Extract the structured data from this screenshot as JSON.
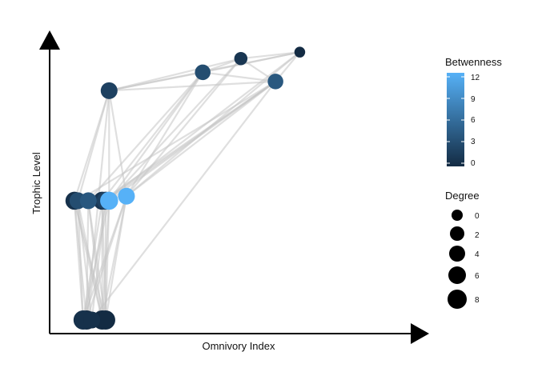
{
  "axes": {
    "x_label": "Omnivory Index",
    "y_label": "Trophic Level"
  },
  "legend_betweenness": {
    "title": "Betwenness",
    "ticks": [
      "12",
      "9",
      "6",
      "3",
      "0"
    ],
    "color_low": "#132b43",
    "color_high": "#56b1f7"
  },
  "legend_degree": {
    "title": "Degree",
    "ticks": [
      "0",
      "2",
      "4",
      "6",
      "8"
    ]
  },
  "colors": {
    "edge": "#c4c4c4",
    "axis": "#000000"
  },
  "chart_data": {
    "type": "network",
    "nodes": [
      {
        "id": "t1",
        "omnivory": 0.51,
        "trophic": 3.85,
        "betweenness": 1,
        "degree": 3
      },
      {
        "id": "t2",
        "omnivory": 0.68,
        "trophic": 3.92,
        "betweenness": 0,
        "degree": 1
      },
      {
        "id": "t3",
        "omnivory": 0.4,
        "trophic": 3.7,
        "betweenness": 3,
        "degree": 5
      },
      {
        "id": "t4",
        "omnivory": 0.61,
        "trophic": 3.6,
        "betweenness": 4,
        "degree": 5
      },
      {
        "id": "t5",
        "omnivory": 0.13,
        "trophic": 3.5,
        "betweenness": 2,
        "degree": 6
      },
      {
        "id": "m1",
        "omnivory": 0.03,
        "trophic": 2.3,
        "betweenness": 0.5,
        "degree": 7
      },
      {
        "id": "m2",
        "omnivory": 0.04,
        "trophic": 2.3,
        "betweenness": 3,
        "degree": 6
      },
      {
        "id": "m3",
        "omnivory": 0.07,
        "trophic": 2.3,
        "betweenness": 4,
        "degree": 6
      },
      {
        "id": "m4",
        "omnivory": 0.11,
        "trophic": 2.3,
        "betweenness": 1,
        "degree": 7
      },
      {
        "id": "m5",
        "omnivory": 0.12,
        "trophic": 2.3,
        "betweenness": 2,
        "degree": 7
      },
      {
        "id": "m6",
        "omnivory": 0.13,
        "trophic": 2.3,
        "betweenness": 12,
        "degree": 7
      },
      {
        "id": "m7",
        "omnivory": 0.18,
        "trophic": 2.35,
        "betweenness": 12,
        "degree": 6
      },
      {
        "id": "b1",
        "omnivory": 0.055,
        "trophic": 1.0,
        "betweenness": 0.5,
        "degree": 8
      },
      {
        "id": "b2",
        "omnivory": 0.065,
        "trophic": 1.0,
        "betweenness": 0,
        "degree": 8
      },
      {
        "id": "b3",
        "omnivory": 0.08,
        "trophic": 1.0,
        "betweenness": 0.5,
        "degree": 6
      },
      {
        "id": "b4",
        "omnivory": 0.11,
        "trophic": 1.0,
        "betweenness": 0,
        "degree": 8
      },
      {
        "id": "b5",
        "omnivory": 0.12,
        "trophic": 1.0,
        "betweenness": 0,
        "degree": 8
      }
    ],
    "edges": [
      [
        "t1",
        "t2"
      ],
      [
        "t1",
        "t3"
      ],
      [
        "t1",
        "t4"
      ],
      [
        "t1",
        "t5"
      ],
      [
        "t2",
        "t3"
      ],
      [
        "t2",
        "t4"
      ],
      [
        "t2",
        "t5"
      ],
      [
        "t3",
        "t5"
      ],
      [
        "t4",
        "t5"
      ],
      [
        "t3",
        "t4"
      ],
      [
        "t3",
        "m3"
      ],
      [
        "t3",
        "m6"
      ],
      [
        "t3",
        "m7"
      ],
      [
        "t3",
        "m4"
      ],
      [
        "t4",
        "m7"
      ],
      [
        "t4",
        "m5"
      ],
      [
        "t4",
        "m6"
      ],
      [
        "t4",
        "m2"
      ],
      [
        "t4",
        "b3"
      ],
      [
        "t4",
        "m4"
      ],
      [
        "t5",
        "m1"
      ],
      [
        "t5",
        "m2"
      ],
      [
        "t5",
        "m6"
      ],
      [
        "t5",
        "m7"
      ],
      [
        "t5",
        "b2"
      ],
      [
        "t1",
        "m6"
      ],
      [
        "t1",
        "m7"
      ],
      [
        "t2",
        "m7"
      ],
      [
        "t2",
        "m5"
      ],
      [
        "m1",
        "b1"
      ],
      [
        "m1",
        "b2"
      ],
      [
        "m1",
        "b4"
      ],
      [
        "m1",
        "b5"
      ],
      [
        "m2",
        "b1"
      ],
      [
        "m2",
        "b3"
      ],
      [
        "m2",
        "b4"
      ],
      [
        "m3",
        "b2"
      ],
      [
        "m3",
        "b4"
      ],
      [
        "m3",
        "b5"
      ],
      [
        "m4",
        "b1"
      ],
      [
        "m4",
        "b4"
      ],
      [
        "m4",
        "b5"
      ],
      [
        "m5",
        "b2"
      ],
      [
        "m5",
        "b3"
      ],
      [
        "m5",
        "b5"
      ],
      [
        "m6",
        "b1"
      ],
      [
        "m6",
        "b4"
      ],
      [
        "m6",
        "b5"
      ],
      [
        "m7",
        "b1"
      ],
      [
        "m7",
        "b2"
      ],
      [
        "m7",
        "b4"
      ],
      [
        "m7",
        "b5"
      ],
      [
        "m7",
        "m1"
      ],
      [
        "m6",
        "m2"
      ]
    ]
  }
}
